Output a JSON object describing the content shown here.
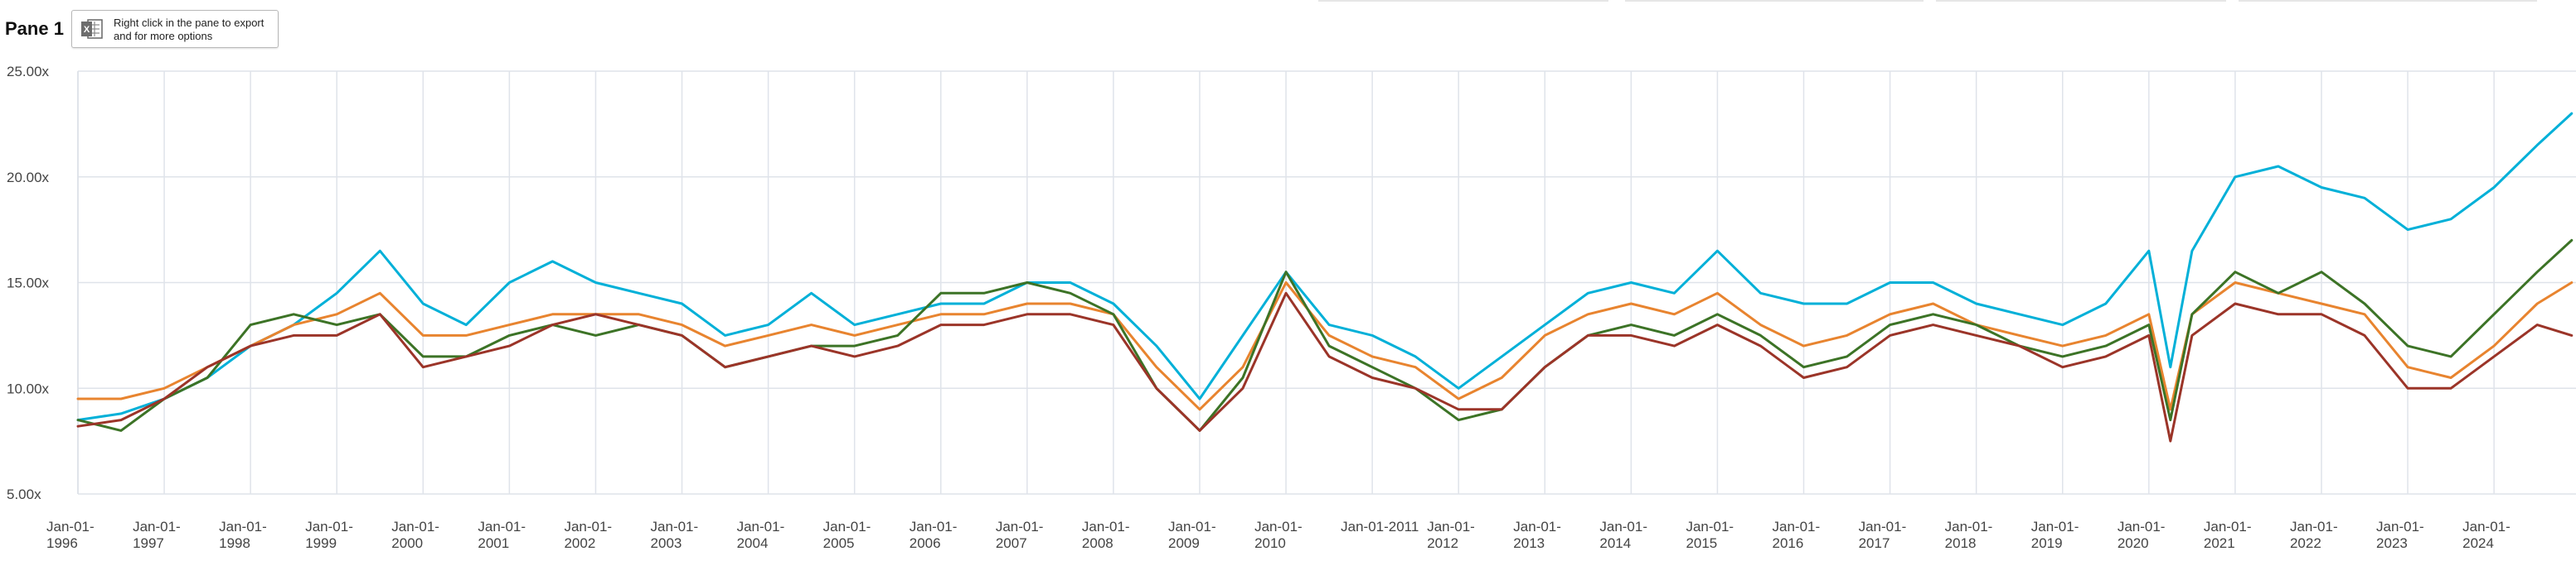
{
  "pane": {
    "title": "Pane 1"
  },
  "export_hint": {
    "text": "Right click in the pane to export and for more options",
    "icon": "excel-icon"
  },
  "chart_data": {
    "type": "line",
    "title": "",
    "xlabel": "",
    "ylabel": "",
    "ylim": [
      5,
      25
    ],
    "xlim": [
      "1996-01-01",
      "2024-12-31"
    ],
    "grid": true,
    "y_ticks": [
      {
        "value": 5,
        "label": "5.00x"
      },
      {
        "value": 10,
        "label": "10.00x"
      },
      {
        "value": 15,
        "label": "15.00x"
      },
      {
        "value": 20,
        "label": "20.00x"
      },
      {
        "value": 25,
        "label": "25.00x"
      }
    ],
    "x_ticks": [
      {
        "year": 1996,
        "label": [
          "Jan-01-",
          "1996"
        ]
      },
      {
        "year": 1997,
        "label": [
          "Jan-01-",
          "1997"
        ]
      },
      {
        "year": 1998,
        "label": [
          "Jan-01-",
          "1998"
        ]
      },
      {
        "year": 1999,
        "label": [
          "Jan-01-",
          "1999"
        ]
      },
      {
        "year": 2000,
        "label": [
          "Jan-01-",
          "2000"
        ]
      },
      {
        "year": 2001,
        "label": [
          "Jan-01-",
          "2001"
        ]
      },
      {
        "year": 2002,
        "label": [
          "Jan-01-",
          "2002"
        ]
      },
      {
        "year": 2003,
        "label": [
          "Jan-01-",
          "2003"
        ]
      },
      {
        "year": 2004,
        "label": [
          "Jan-01-",
          "2004"
        ]
      },
      {
        "year": 2005,
        "label": [
          "Jan-01-",
          "2005"
        ]
      },
      {
        "year": 2006,
        "label": [
          "Jan-01-",
          "2006"
        ]
      },
      {
        "year": 2007,
        "label": [
          "Jan-01-",
          "2007"
        ]
      },
      {
        "year": 2008,
        "label": [
          "Jan-01-",
          "2008"
        ]
      },
      {
        "year": 2009,
        "label": [
          "Jan-01-",
          "2009"
        ]
      },
      {
        "year": 2010,
        "label": [
          "Jan-01-",
          "2010"
        ]
      },
      {
        "year": 2011,
        "label": [
          "Jan-01-2011"
        ]
      },
      {
        "year": 2012,
        "label": [
          "Jan-01-",
          "2012"
        ]
      },
      {
        "year": 2013,
        "label": [
          "Jan-01-",
          "2013"
        ]
      },
      {
        "year": 2014,
        "label": [
          "Jan-01-",
          "2014"
        ]
      },
      {
        "year": 2015,
        "label": [
          "Jan-01-",
          "2015"
        ]
      },
      {
        "year": 2016,
        "label": [
          "Jan-01-",
          "2016"
        ]
      },
      {
        "year": 2017,
        "label": [
          "Jan-01-",
          "2017"
        ]
      },
      {
        "year": 2018,
        "label": [
          "Jan-01-",
          "2018"
        ]
      },
      {
        "year": 2019,
        "label": [
          "Jan-01-",
          "2019"
        ]
      },
      {
        "year": 2020,
        "label": [
          "Jan-01-",
          "2020"
        ]
      },
      {
        "year": 2021,
        "label": [
          "Jan-01-",
          "2021"
        ]
      },
      {
        "year": 2022,
        "label": [
          "Jan-01-",
          "2022"
        ]
      },
      {
        "year": 2023,
        "label": [
          "Jan-01-",
          "2023"
        ]
      },
      {
        "year": 2024,
        "label": [
          "Jan-01-",
          "2024"
        ]
      }
    ],
    "x": [
      1996.0,
      1996.5,
      1997.0,
      1997.5,
      1998.0,
      1998.5,
      1999.0,
      1999.5,
      2000.0,
      2000.5,
      2001.0,
      2001.5,
      2002.0,
      2002.5,
      2003.0,
      2003.5,
      2004.0,
      2004.5,
      2005.0,
      2005.5,
      2006.0,
      2006.5,
      2007.0,
      2007.5,
      2008.0,
      2008.5,
      2009.0,
      2009.5,
      2010.0,
      2010.5,
      2011.0,
      2011.5,
      2012.0,
      2012.5,
      2013.0,
      2013.5,
      2014.0,
      2014.5,
      2015.0,
      2015.5,
      2016.0,
      2016.5,
      2017.0,
      2017.5,
      2018.0,
      2018.5,
      2019.0,
      2019.5,
      2020.0,
      2020.25,
      2020.5,
      2021.0,
      2021.5,
      2022.0,
      2022.5,
      2023.0,
      2023.5,
      2024.0,
      2024.5,
      2024.9
    ],
    "series": [
      {
        "color": "#00b0d8",
        "values": [
          8.5,
          8.8,
          9.5,
          10.5,
          12.0,
          13.0,
          14.5,
          16.5,
          14.0,
          13.0,
          15.0,
          16.0,
          15.0,
          14.5,
          14.0,
          12.5,
          13.0,
          14.5,
          13.0,
          13.5,
          14.0,
          14.0,
          15.0,
          15.0,
          14.0,
          12.0,
          9.5,
          12.5,
          15.5,
          13.0,
          12.5,
          11.5,
          10.0,
          11.5,
          13.0,
          14.5,
          15.0,
          14.5,
          16.5,
          14.5,
          14.0,
          14.0,
          15.0,
          15.0,
          14.0,
          13.5,
          13.0,
          14.0,
          16.5,
          11.0,
          16.5,
          20.0,
          20.5,
          19.5,
          19.0,
          17.5,
          18.0,
          19.5,
          21.5,
          23.0
        ]
      },
      {
        "color": "#e8842f",
        "values": [
          9.5,
          9.5,
          10.0,
          11.0,
          12.0,
          13.0,
          13.5,
          14.5,
          12.5,
          12.5,
          13.0,
          13.5,
          13.5,
          13.5,
          13.0,
          12.0,
          12.5,
          13.0,
          12.5,
          13.0,
          13.5,
          13.5,
          14.0,
          14.0,
          13.5,
          11.0,
          9.0,
          11.0,
          15.0,
          12.5,
          11.5,
          11.0,
          9.5,
          10.5,
          12.5,
          13.5,
          14.0,
          13.5,
          14.5,
          13.0,
          12.0,
          12.5,
          13.5,
          14.0,
          13.0,
          12.5,
          12.0,
          12.5,
          13.5,
          9.0,
          13.5,
          15.0,
          14.5,
          14.0,
          13.5,
          11.0,
          10.5,
          12.0,
          14.0,
          15.0
        ]
      },
      {
        "color": "#3c7326",
        "values": [
          8.5,
          8.0,
          9.5,
          10.5,
          13.0,
          13.5,
          13.0,
          13.5,
          11.5,
          11.5,
          12.5,
          13.0,
          12.5,
          13.0,
          12.5,
          11.0,
          11.5,
          12.0,
          12.0,
          12.5,
          14.5,
          14.5,
          15.0,
          14.5,
          13.5,
          10.0,
          8.0,
          10.5,
          15.5,
          12.0,
          11.0,
          10.0,
          8.5,
          9.0,
          11.0,
          12.5,
          13.0,
          12.5,
          13.5,
          12.5,
          11.0,
          11.5,
          13.0,
          13.5,
          13.0,
          12.0,
          11.5,
          12.0,
          13.0,
          8.5,
          13.5,
          15.5,
          14.5,
          15.5,
          14.0,
          12.0,
          11.5,
          13.5,
          15.5,
          17.0
        ]
      },
      {
        "color": "#9b3428",
        "values": [
          8.2,
          8.5,
          9.5,
          11.0,
          12.0,
          12.5,
          12.5,
          13.5,
          11.0,
          11.5,
          12.0,
          13.0,
          13.5,
          13.0,
          12.5,
          11.0,
          11.5,
          12.0,
          11.5,
          12.0,
          13.0,
          13.0,
          13.5,
          13.5,
          13.0,
          10.0,
          8.0,
          10.0,
          14.5,
          11.5,
          10.5,
          10.0,
          9.0,
          9.0,
          11.0,
          12.5,
          12.5,
          12.0,
          13.0,
          12.0,
          10.5,
          11.0,
          12.5,
          13.0,
          12.5,
          12.0,
          11.0,
          11.5,
          12.5,
          7.5,
          12.5,
          14.0,
          13.5,
          13.5,
          12.5,
          10.0,
          10.0,
          11.5,
          13.0,
          12.5
        ]
      }
    ]
  }
}
